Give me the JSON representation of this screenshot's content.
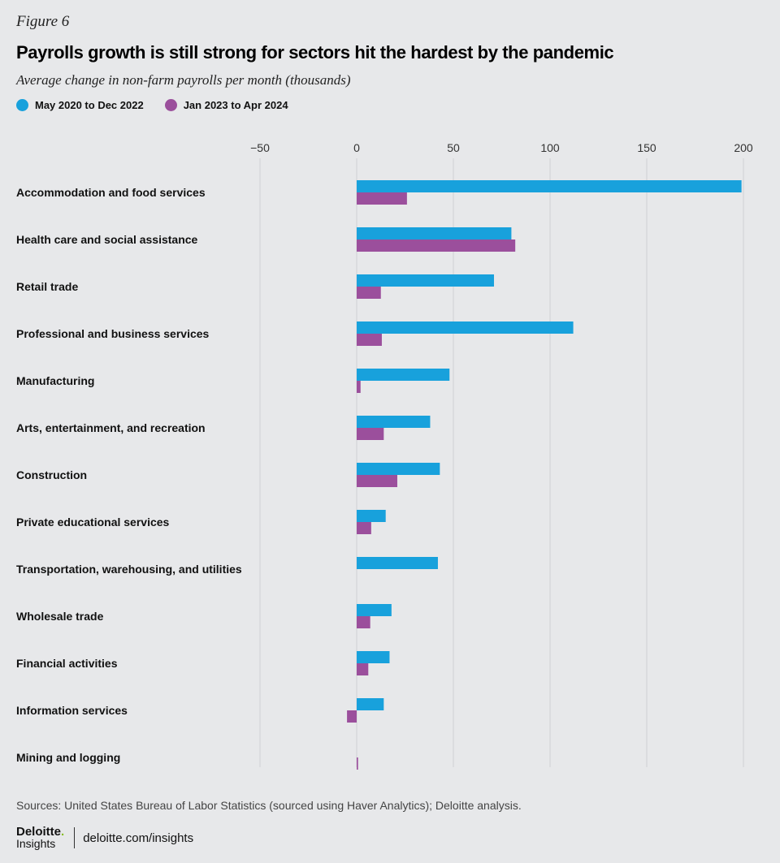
{
  "figure_label": "Figure 6",
  "colors": {
    "series1": "#18a1dc",
    "series2": "#9b4f9c",
    "grid": "#cfd1d4",
    "background": "#e7e8ea"
  },
  "chart_data": {
    "type": "bar",
    "orientation": "horizontal",
    "title": "Payrolls growth is still strong for sectors hit the hardest by the pandemic",
    "subtitle": "Average change in non-farm payrolls per month (thousands)",
    "legend_position": "top-left",
    "grid": true,
    "xlim": [
      -50,
      200
    ],
    "xticks": [
      -50,
      0,
      50,
      100,
      150,
      200
    ],
    "xtick_labels": [
      "−50",
      "0",
      "50",
      "100",
      "150",
      "200"
    ],
    "categories": [
      "Accommodation and food services",
      "Health care and social assistance",
      "Retail trade",
      "Professional and business services",
      "Manufacturing",
      "Arts, entertainment, and recreation",
      "Construction",
      "Private educational services",
      "Transportation, warehousing, and utilities",
      "Wholesale trade",
      "Financial activities",
      "Information services",
      "Mining and logging"
    ],
    "series": [
      {
        "name": "May 2020 to Dec 2022",
        "values": [
          199,
          80,
          71,
          112,
          48,
          38,
          43,
          15,
          42,
          18,
          17,
          14,
          0
        ]
      },
      {
        "name": "Jan 2023 to Apr 2024",
        "values": [
          26,
          82,
          12.5,
          13,
          2,
          14,
          21,
          7.5,
          0,
          7,
          6,
          -5,
          0.7
        ]
      }
    ]
  },
  "source": "Sources: United States Bureau of Labor Statistics (sourced using Haver Analytics); Deloitte analysis.",
  "footer": {
    "logo_text": "Deloitte.",
    "logo_sub": "Insights",
    "url": "deloitte.com/insights"
  }
}
